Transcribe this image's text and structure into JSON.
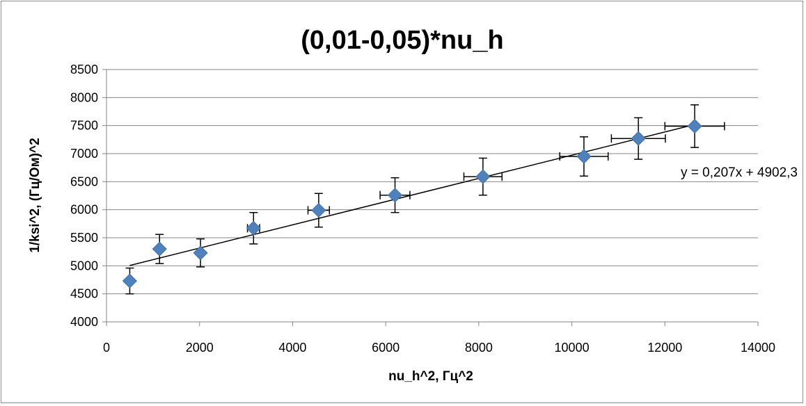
{
  "chart_data": {
    "type": "scatter",
    "title": "(0,01-0,05)*nu_h",
    "xlabel": "nu_h^2, Гц^2",
    "ylabel": "1/ksi^2, (Гц/Ом)^2",
    "xlim": [
      0,
      14000
    ],
    "ylim": [
      4000,
      8500
    ],
    "x_ticks": [
      "0",
      "2000",
      "4000",
      "6000",
      "8000",
      "10000",
      "12000",
      "14000"
    ],
    "y_ticks": [
      "4000",
      "4500",
      "5000",
      "5500",
      "6000",
      "6500",
      "7000",
      "7500",
      "8000",
      "8500"
    ],
    "grid": "horizontal",
    "marker_color": "#4f81bd",
    "series": [
      {
        "x": [
          500,
          1140,
          2020,
          3160,
          4560,
          6200,
          8090,
          10260,
          11430,
          12640
        ],
        "y": [
          4730,
          5300,
          5230,
          5670,
          5990,
          6260,
          6590,
          6950,
          7270,
          7490
        ],
        "x_err": [
          0,
          0,
          0,
          130,
          230,
          320,
          410,
          520,
          580,
          640
        ],
        "y_err": [
          230,
          260,
          250,
          280,
          300,
          310,
          330,
          350,
          370,
          380
        ]
      }
    ],
    "trendline": {
      "slope": 0.207,
      "intercept": 4902.3,
      "x_range": [
        500,
        12640
      ],
      "equation": "y = 0,207x + 4902,3"
    }
  }
}
